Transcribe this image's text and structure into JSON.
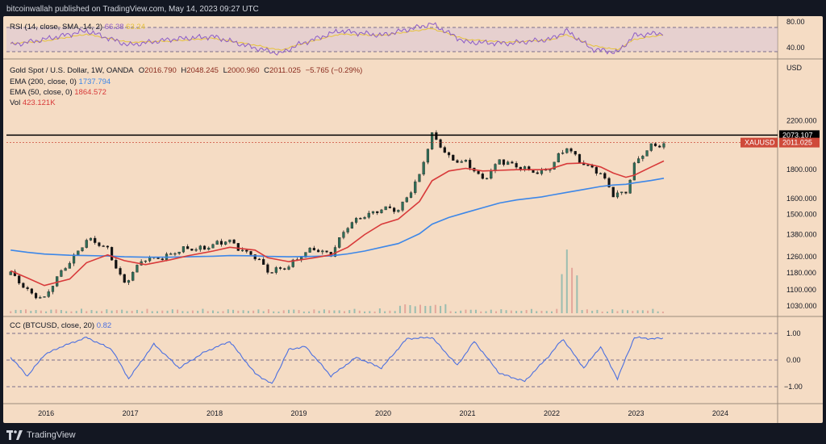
{
  "header": {
    "text": "bitcoinwallah published on TradingView.com, May 14, 2023 09:27 UTC"
  },
  "footer": {
    "brand": "TradingView"
  },
  "colors": {
    "background": "#f5dcc4",
    "ema200": "#3d87e8",
    "ema50": "#d83a3a",
    "candle_up": "#2f6f58",
    "candle_down": "#111111",
    "rsi": "#8c5cc6",
    "rsi_sma": "#e6c23a",
    "cc": "#4b6fe0",
    "price_tag": "#cf4a3a",
    "resistance": "#000000"
  },
  "rsi_panel": {
    "title": "RSI (14, close, SMA, 14, 2)",
    "value": "66.38",
    "value2": "63.24",
    "ticks": [
      "80.00",
      "40.00"
    ]
  },
  "price_panel": {
    "symbol": "Gold Spot / U.S. Dollar, 1W, OANDA",
    "ohlc": {
      "o_label": "O",
      "o": "2016.790",
      "h_label": "H",
      "h": "2048.245",
      "l_label": "L",
      "l": "2000.960",
      "c_label": "C",
      "c": "2011.025",
      "change": "−5.765 (−0.29%)"
    },
    "ema200": {
      "label": "EMA (200, close, 0)",
      "value": "1737.794"
    },
    "ema50": {
      "label": "EMA (50, close, 0)",
      "value": "1864.572"
    },
    "vol": {
      "label": "Vol",
      "value": "423.121K"
    },
    "currency": "USD",
    "resistance_tag": "2073.107",
    "symbol_tag": "XAUUSD",
    "last_price_tag": "2011.025",
    "ticks": [
      "2200.000",
      "1800.000",
      "1600.000",
      "1500.000",
      "1380.000",
      "1260.000",
      "1180.000",
      "1100.000",
      "1030.000"
    ]
  },
  "cc_panel": {
    "title": "CC (BTCUSD, close, 20)",
    "value": "0.82",
    "ticks": [
      "1.00",
      "0.00",
      "−1.00"
    ]
  },
  "x_axis": {
    "labels": [
      "2016",
      "2017",
      "2018",
      "2019",
      "2020",
      "2021",
      "2022",
      "2023",
      "2024"
    ]
  },
  "chart_data": [
    {
      "type": "line",
      "title": "RSI (14, close, SMA, 14, 2)",
      "x": [
        2015.6,
        2016.0,
        2016.5,
        2017.0,
        2017.5,
        2018.0,
        2018.5,
        2018.8,
        2019.0,
        2019.5,
        2020.0,
        2020.6,
        2021.0,
        2021.5,
        2022.0,
        2022.2,
        2022.5,
        2022.8,
        2023.0,
        2023.35
      ],
      "series": [
        {
          "name": "RSI",
          "values": [
            45,
            55,
            70,
            45,
            55,
            60,
            40,
            30,
            45,
            70,
            62,
            82,
            50,
            48,
            55,
            70,
            38,
            32,
            62,
            66.38
          ]
        },
        {
          "name": "SMA",
          "values": [
            48,
            52,
            64,
            50,
            52,
            57,
            45,
            36,
            45,
            64,
            62,
            74,
            55,
            50,
            54,
            63,
            44,
            37,
            55,
            63.24
          ]
        }
      ],
      "ylim": [
        25,
        90
      ]
    },
    {
      "type": "line",
      "title": "Gold Spot / U.S. Dollar, 1W, OANDA",
      "x": [
        2015.6,
        2015.8,
        2016.0,
        2016.3,
        2016.5,
        2016.75,
        2016.95,
        2017.2,
        2017.5,
        2017.7,
        2018.0,
        2018.2,
        2018.5,
        2018.65,
        2018.9,
        2019.2,
        2019.4,
        2019.6,
        2019.8,
        2020.0,
        2020.2,
        2020.45,
        2020.6,
        2020.8,
        2021.0,
        2021.2,
        2021.4,
        2021.6,
        2021.9,
        2022.0,
        2022.2,
        2022.4,
        2022.6,
        2022.75,
        2022.9,
        2023.0,
        2023.2,
        2023.35
      ],
      "series": [
        {
          "name": "Gold",
          "values": [
            1170,
            1100,
            1060,
            1240,
            1350,
            1300,
            1130,
            1250,
            1270,
            1300,
            1320,
            1340,
            1260,
            1180,
            1220,
            1300,
            1280,
            1420,
            1500,
            1530,
            1520,
            1760,
            2063,
            1900,
            1850,
            1720,
            1880,
            1810,
            1790,
            1810,
            1970,
            1850,
            1760,
            1630,
            1650,
            1830,
            1980,
            2011
          ]
        },
        {
          "name": "EMA (200, close, 0)",
          "values": [
            1295,
            1283,
            1274,
            1268,
            1266,
            1264,
            1260,
            1258,
            1258,
            1260,
            1263,
            1266,
            1265,
            1262,
            1260,
            1262,
            1265,
            1275,
            1290,
            1310,
            1330,
            1385,
            1440,
            1480,
            1510,
            1540,
            1570,
            1590,
            1610,
            1620,
            1640,
            1660,
            1680,
            1690,
            1695,
            1705,
            1722,
            1738
          ]
        },
        {
          "name": "EMA (50, close, 0)",
          "values": [
            1190,
            1155,
            1120,
            1150,
            1230,
            1270,
            1240,
            1220,
            1245,
            1265,
            1290,
            1310,
            1295,
            1255,
            1235,
            1255,
            1270,
            1310,
            1380,
            1440,
            1470,
            1580,
            1720,
            1790,
            1810,
            1790,
            1795,
            1800,
            1800,
            1805,
            1845,
            1850,
            1820,
            1775,
            1745,
            1760,
            1820,
            1865
          ]
        }
      ],
      "resistance": 2073.107,
      "ylim": [
        1000,
        2300
      ]
    },
    {
      "type": "line",
      "title": "CC (BTCUSD, close, 20)",
      "x": [
        2015.6,
        2015.8,
        2016.0,
        2016.2,
        2016.5,
        2016.8,
        2017.0,
        2017.3,
        2017.6,
        2017.9,
        2018.2,
        2018.5,
        2018.7,
        2018.9,
        2019.1,
        2019.4,
        2019.7,
        2020.0,
        2020.3,
        2020.6,
        2020.9,
        2021.1,
        2021.4,
        2021.7,
        2022.0,
        2022.15,
        2022.4,
        2022.6,
        2022.8,
        2023.0,
        2023.2,
        2023.35
      ],
      "series": [
        {
          "name": "CC",
          "values": [
            0.1,
            -0.6,
            0.2,
            0.5,
            0.85,
            0.4,
            -0.7,
            0.6,
            -0.3,
            0.3,
            0.7,
            -0.5,
            -0.9,
            0.4,
            0.5,
            -0.6,
            0.1,
            -0.3,
            0.8,
            0.85,
            -0.2,
            0.7,
            -0.5,
            -0.8,
            0.2,
            0.8,
            -0.3,
            0.5,
            -0.7,
            0.85,
            0.8,
            0.82
          ]
        }
      ],
      "ylim": [
        -1.3,
        1.3
      ]
    }
  ]
}
